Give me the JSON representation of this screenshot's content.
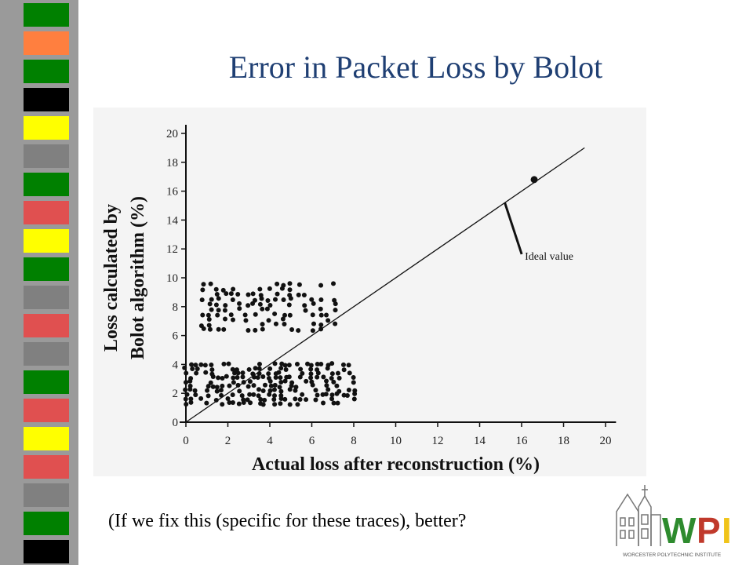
{
  "slide": {
    "title": "Error in Packet Loss by Bolot",
    "footnote": "(If we fix this (specific for these traces), better?"
  },
  "logo": {
    "text": "WPI",
    "subtitle": "WORCESTER POLYTECHNIC INSTITUTE",
    "colors": {
      "W": "#2e8b2e",
      "P": "#c0392b",
      "I": "#f0c419"
    }
  },
  "decor": {
    "stripe_colors": [
      "#008000",
      "#ff7f3f",
      "#008000",
      "#000000",
      "#ffff00",
      "#808080",
      "#008000",
      "#e05050",
      "#ffff00",
      "#008000",
      "#808080",
      "#e05050",
      "#808080",
      "#008000",
      "#e05050",
      "#ffff00",
      "#e05050",
      "#808080",
      "#008000",
      "#000000"
    ]
  },
  "chart_data": {
    "type": "scatter",
    "title": "",
    "xlabel": "Actual loss after reconstruction (%)",
    "ylabel_lines": [
      "Loss calculated by",
      "Bolot algorithm (%)"
    ],
    "xlim": [
      0,
      20
    ],
    "ylim": [
      0,
      20
    ],
    "x_ticks": [
      0,
      2,
      4,
      6,
      8,
      10,
      12,
      14,
      16,
      18,
      20
    ],
    "y_ticks": [
      0,
      2,
      4,
      6,
      8,
      10,
      12,
      14,
      16,
      18,
      20
    ],
    "ideal_line": {
      "x": [
        0,
        19
      ],
      "y": [
        0,
        19
      ]
    },
    "annotation": {
      "text": "Ideal value",
      "points_to": [
        15.2,
        15.2
      ],
      "label_at": [
        17.5,
        11.2
      ]
    },
    "highlight_point": [
      16.6,
      16.8
    ],
    "clusters": [
      {
        "name": "",
        "x_range": [
          0.0,
          8.0
        ],
        "y_range": [
          1.3,
          4.0
        ],
        "step_x": 0.25,
        "step_y": 0.3
      },
      {
        "name": "",
        "x_range": [
          0.8,
          7.2
        ],
        "y_range": [
          6.4,
          9.8
        ],
        "step_x": 0.35,
        "step_y": 0.35
      }
    ],
    "grid": false,
    "legend": "none"
  }
}
